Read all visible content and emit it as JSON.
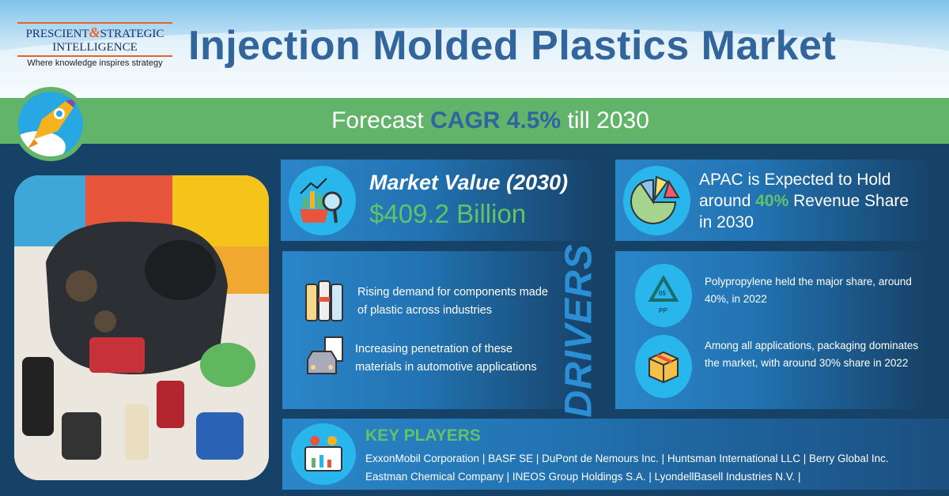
{
  "logo": {
    "line1a": "PRESCIENT",
    "amp": "&",
    "line1b": "STRATEGIC",
    "line2": "INTELLIGENCE",
    "tagline": "Where knowledge inspires strategy"
  },
  "title": "Injection Molded Plastics Market",
  "forecast": {
    "prefix": "Forecast",
    "highlight": "CAGR 4.5%",
    "suffix": "till 2030"
  },
  "market_value": {
    "label": "Market Value (2030)",
    "value": "$409.2 Billion"
  },
  "apac": {
    "line1": "APAC is Expected to Hold",
    "pre": "around",
    "highlight": "40%",
    "post": "Revenue Share",
    "line3": "in 2030"
  },
  "drivers": {
    "heading": "DRIVERS",
    "items": [
      "Rising demand for components made of plastic across industries",
      "Increasing penetration of these materials in automotive applications"
    ]
  },
  "insights": [
    "Polypropylene held the major share, around 40%, in 2022",
    "Among all applications, packaging dominates the market, with around 30% share in 2022"
  ],
  "key_players": {
    "heading": "KEY PLAYERS",
    "line1": "ExxonMobil Corporation | BASF SE | DuPont de Nemours Inc. | Huntsman International LLC | Berry Global Inc.",
    "line2": "Eastman Chemical Company | INEOS Group Holdings S.A. | LyondellBasell Industries N.V. |"
  },
  "colors": {
    "navy": "#174268",
    "green": "#62b46a",
    "title_blue": "#31659c",
    "accent_orange": "#e8632b"
  }
}
